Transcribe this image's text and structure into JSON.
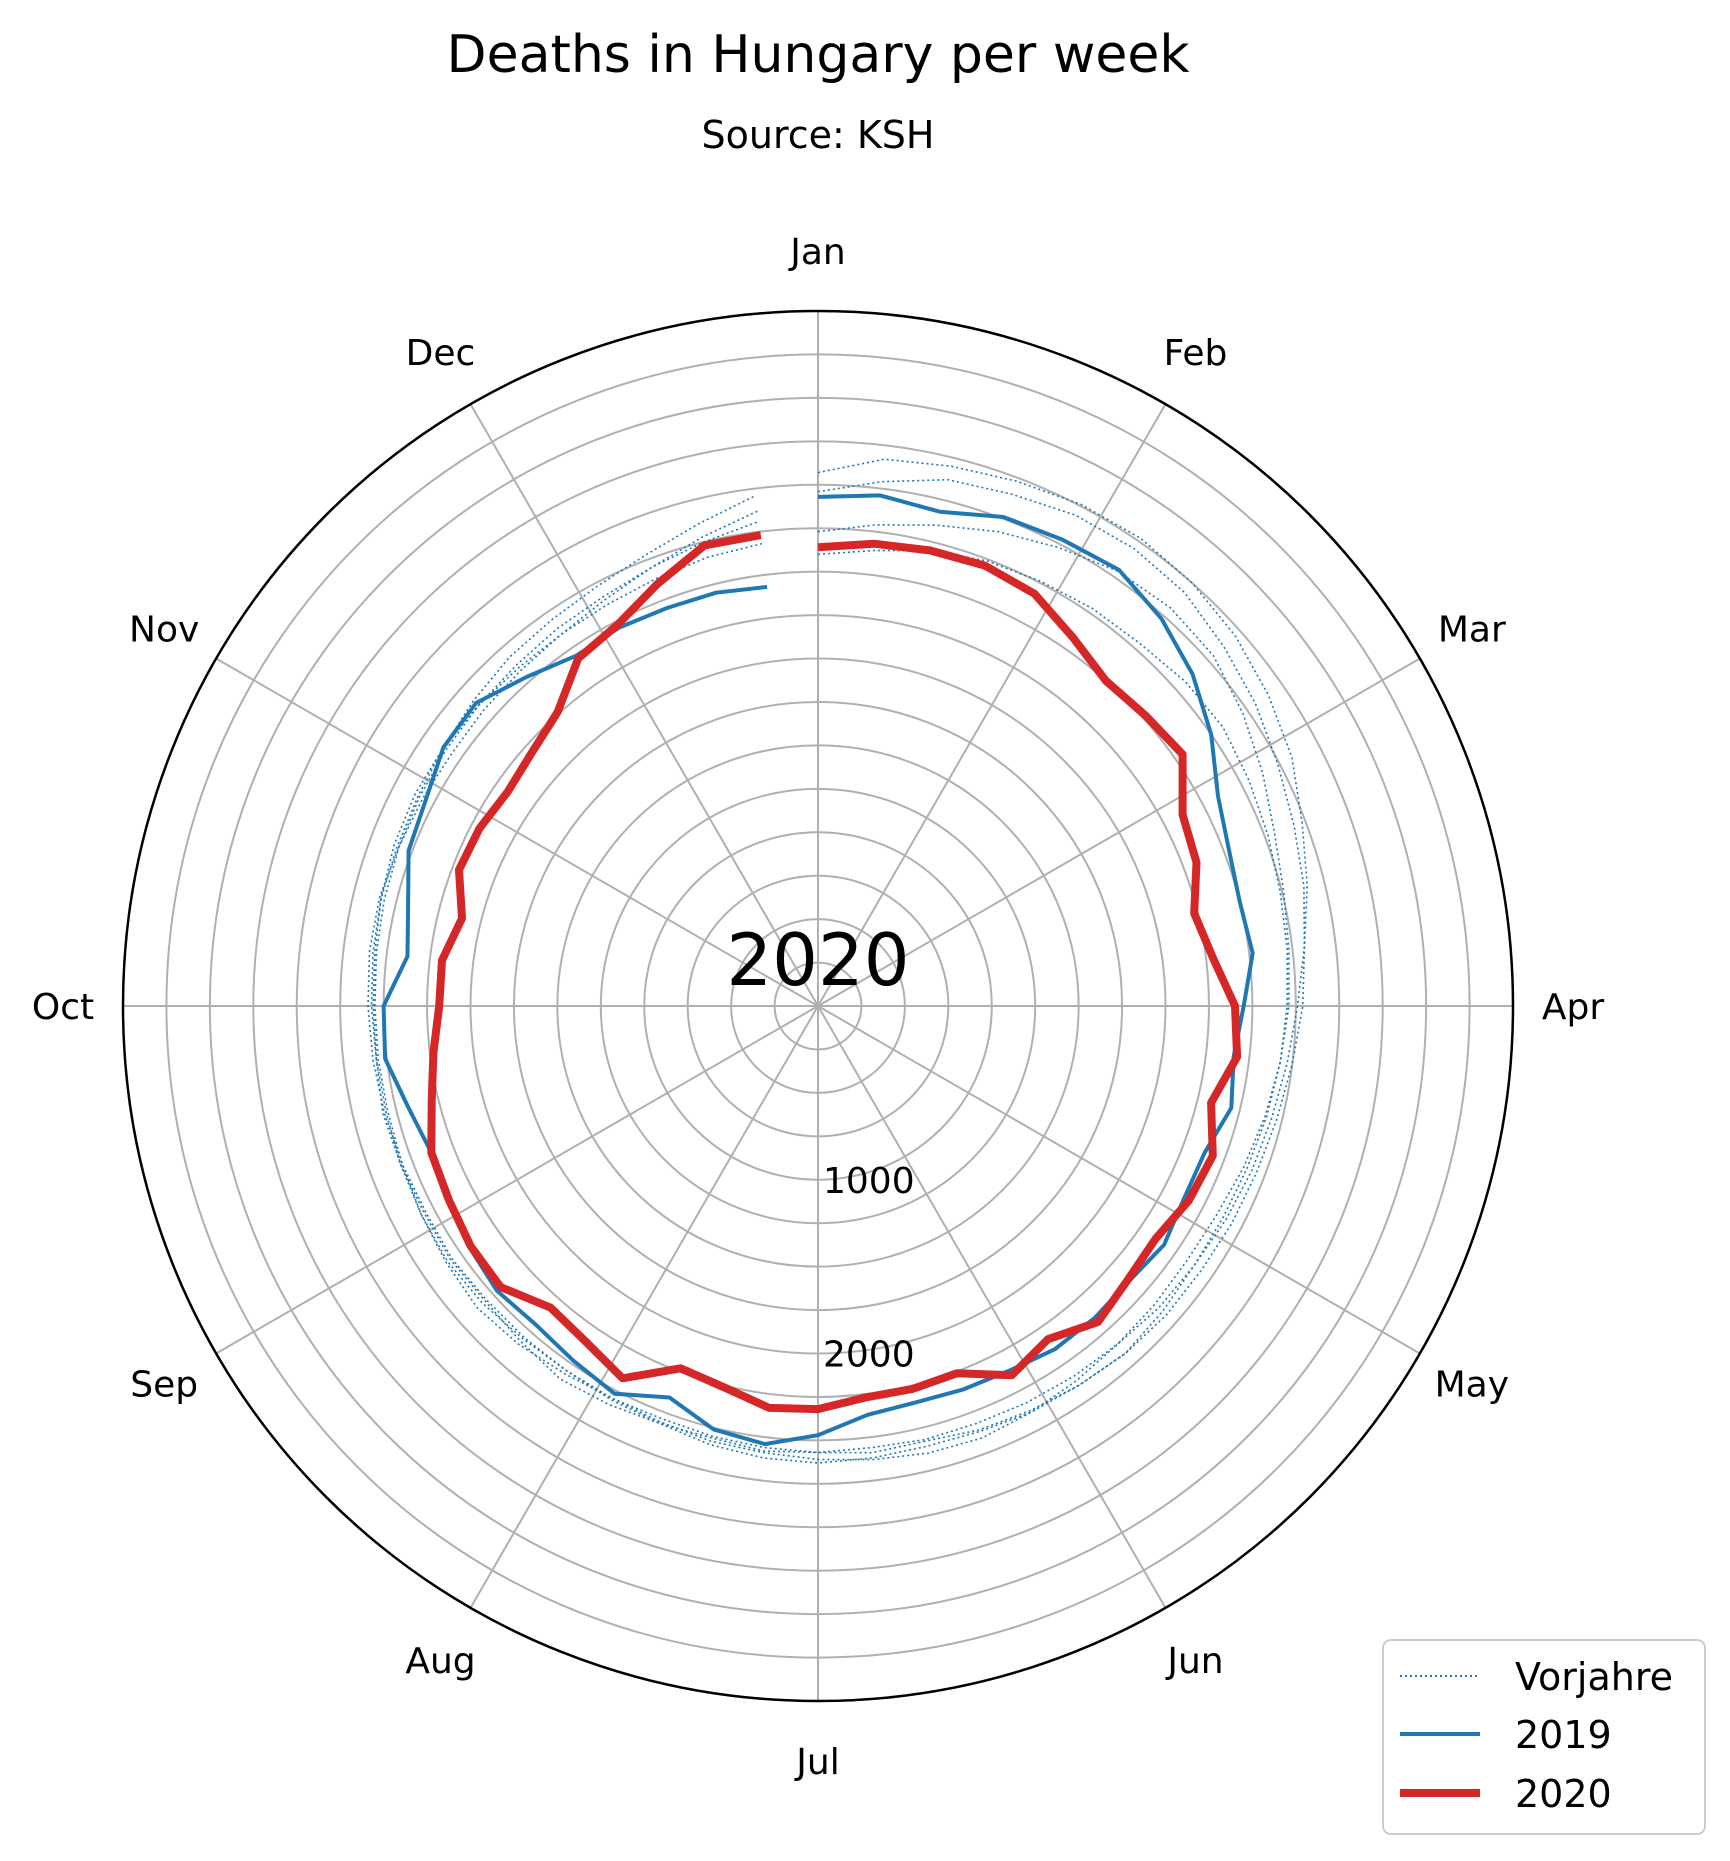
{
  "chart_data": {
    "type": "line",
    "projection": "polar",
    "title": "Deaths in Hungary per week",
    "subtitle": "Source: KSH",
    "center_label": "2020",
    "month_labels": [
      "Jan",
      "Feb",
      "Mar",
      "Apr",
      "May",
      "Jun",
      "Jul",
      "Aug",
      "Sep",
      "Oct",
      "Nov",
      "Dec"
    ],
    "r_tick_labels": [
      {
        "value": 1000,
        "text": "1000"
      },
      {
        "value": 2000,
        "text": "2000"
      }
    ],
    "r_gridlines": [
      250,
      500,
      750,
      1000,
      1250,
      1500,
      1750,
      2000,
      2250,
      2500,
      2750,
      3000,
      3250,
      3500,
      3750,
      4000
    ],
    "rlim": [
      0,
      4000
    ],
    "grid": true,
    "legend_position": "bottom-right",
    "colors": {
      "vorjahre": "#1f77b4",
      "y2019": "#1f77b4",
      "y2020": "#d62728",
      "grid": "#b0b0b0",
      "frame": "#000000"
    },
    "legend": [
      {
        "label": "Vorjahre",
        "style": "dotted"
      },
      {
        "label": "2019",
        "style": "solid"
      },
      {
        "label": "2020",
        "style": "thick"
      }
    ],
    "series": [
      {
        "name": "Vorjahre",
        "style": "dotted",
        "values": [
          3070,
          3170,
          3200,
          3230,
          3260,
          3270,
          3250,
          3210,
          3150,
          3080,
          2980,
          2900,
          2820,
          2760,
          2720,
          2690,
          2670,
          2650,
          2630,
          2620,
          2600,
          2590,
          2580,
          2570,
          2570,
          2560,
          2570,
          2580,
          2560,
          2570,
          2590,
          2610,
          2580,
          2560,
          2570,
          2560,
          2570,
          2580,
          2560,
          2560,
          2570,
          2590,
          2590,
          2600,
          2620,
          2650,
          2680,
          2700,
          2730,
          2780,
          2860,
          2960
        ]
      },
      {
        "name": "Vorjahre",
        "style": "dotted",
        "values": [
          2960,
          3040,
          3120,
          3150,
          3190,
          3200,
          3180,
          3120,
          3060,
          2990,
          2930,
          2880,
          2820,
          2790,
          2750,
          2720,
          2700,
          2690,
          2680,
          2680,
          2670,
          2650,
          2640,
          2620,
          2610,
          2620,
          2630,
          2620,
          2600,
          2570,
          2560,
          2550,
          2550,
          2550,
          2560,
          2550,
          2560,
          2570,
          2580,
          2590,
          2600,
          2600,
          2580,
          2570,
          2560,
          2570,
          2580,
          2600,
          2640,
          2700,
          2780,
          2870
        ]
      },
      {
        "name": "Vorjahre",
        "style": "dotted",
        "values": [
          2730,
          2790,
          2850,
          2920,
          2980,
          3040,
          3060,
          3040,
          2970,
          2890,
          2810,
          2760,
          2730,
          2710,
          2680,
          2660,
          2640,
          2630,
          2630,
          2650,
          2670,
          2650,
          2630,
          2610,
          2580,
          2590,
          2570,
          2560,
          2550,
          2540,
          2550,
          2570,
          2600,
          2620,
          2600,
          2580,
          2560,
          2550,
          2550,
          2550,
          2560,
          2570,
          2580,
          2590,
          2600,
          2610,
          2620,
          2640,
          2660,
          2700,
          2750,
          2810
        ]
      },
      {
        "name": "Vorjahre",
        "style": "dotted",
        "values": [
          2600,
          2640,
          2700,
          2740,
          2760,
          2780,
          2790,
          2820,
          2830,
          2800,
          2770,
          2740,
          2720,
          2700,
          2680,
          2650,
          2620,
          2590,
          2580,
          2590,
          2600,
          2620,
          2640,
          2660,
          2650,
          2630,
          2610,
          2590,
          2580,
          2560,
          2550,
          2550,
          2560,
          2580,
          2590,
          2580,
          2570,
          2560,
          2560,
          2570,
          2580,
          2590,
          2610,
          2620,
          2620,
          2610,
          2600,
          2600,
          2610,
          2630,
          2660,
          2680
        ]
      },
      {
        "name": "2019",
        "style": "solid",
        "values": [
          2930,
          2960,
          2930,
          3010,
          3030,
          3050,
          2980,
          2880,
          2750,
          2600,
          2530,
          2500,
          2520,
          2450,
          2410,
          2450,
          2380,
          2380,
          2420,
          2390,
          2400,
          2400,
          2370,
          2360,
          2350,
          2370,
          2470,
          2540,
          2510,
          2410,
          2520,
          2480,
          2450,
          2470,
          2440,
          2410,
          2380,
          2430,
          2510,
          2500,
          2380,
          2430,
          2520,
          2550,
          2620,
          2630,
          2530,
          2450,
          2460,
          2450,
          2450,
          2430
        ]
      },
      {
        "name": "2020",
        "style": "thick",
        "values": [
          2640,
          2680,
          2700,
          2710,
          2680,
          2580,
          2500,
          2520,
          2550,
          2370,
          2330,
          2230,
          2290,
          2400,
          2430,
          2330,
          2430,
          2410,
          2360,
          2380,
          2430,
          2330,
          2400,
          2260,
          2270,
          2270,
          2320,
          2330,
          2260,
          2230,
          2420,
          2350,
          2320,
          2440,
          2430,
          2400,
          2380,
          2290,
          2230,
          2180,
          2180,
          2110,
          2210,
          2200,
          2170,
          2200,
          2260,
          2430,
          2480,
          2600,
          2730,
          2730
        ]
      }
    ]
  }
}
